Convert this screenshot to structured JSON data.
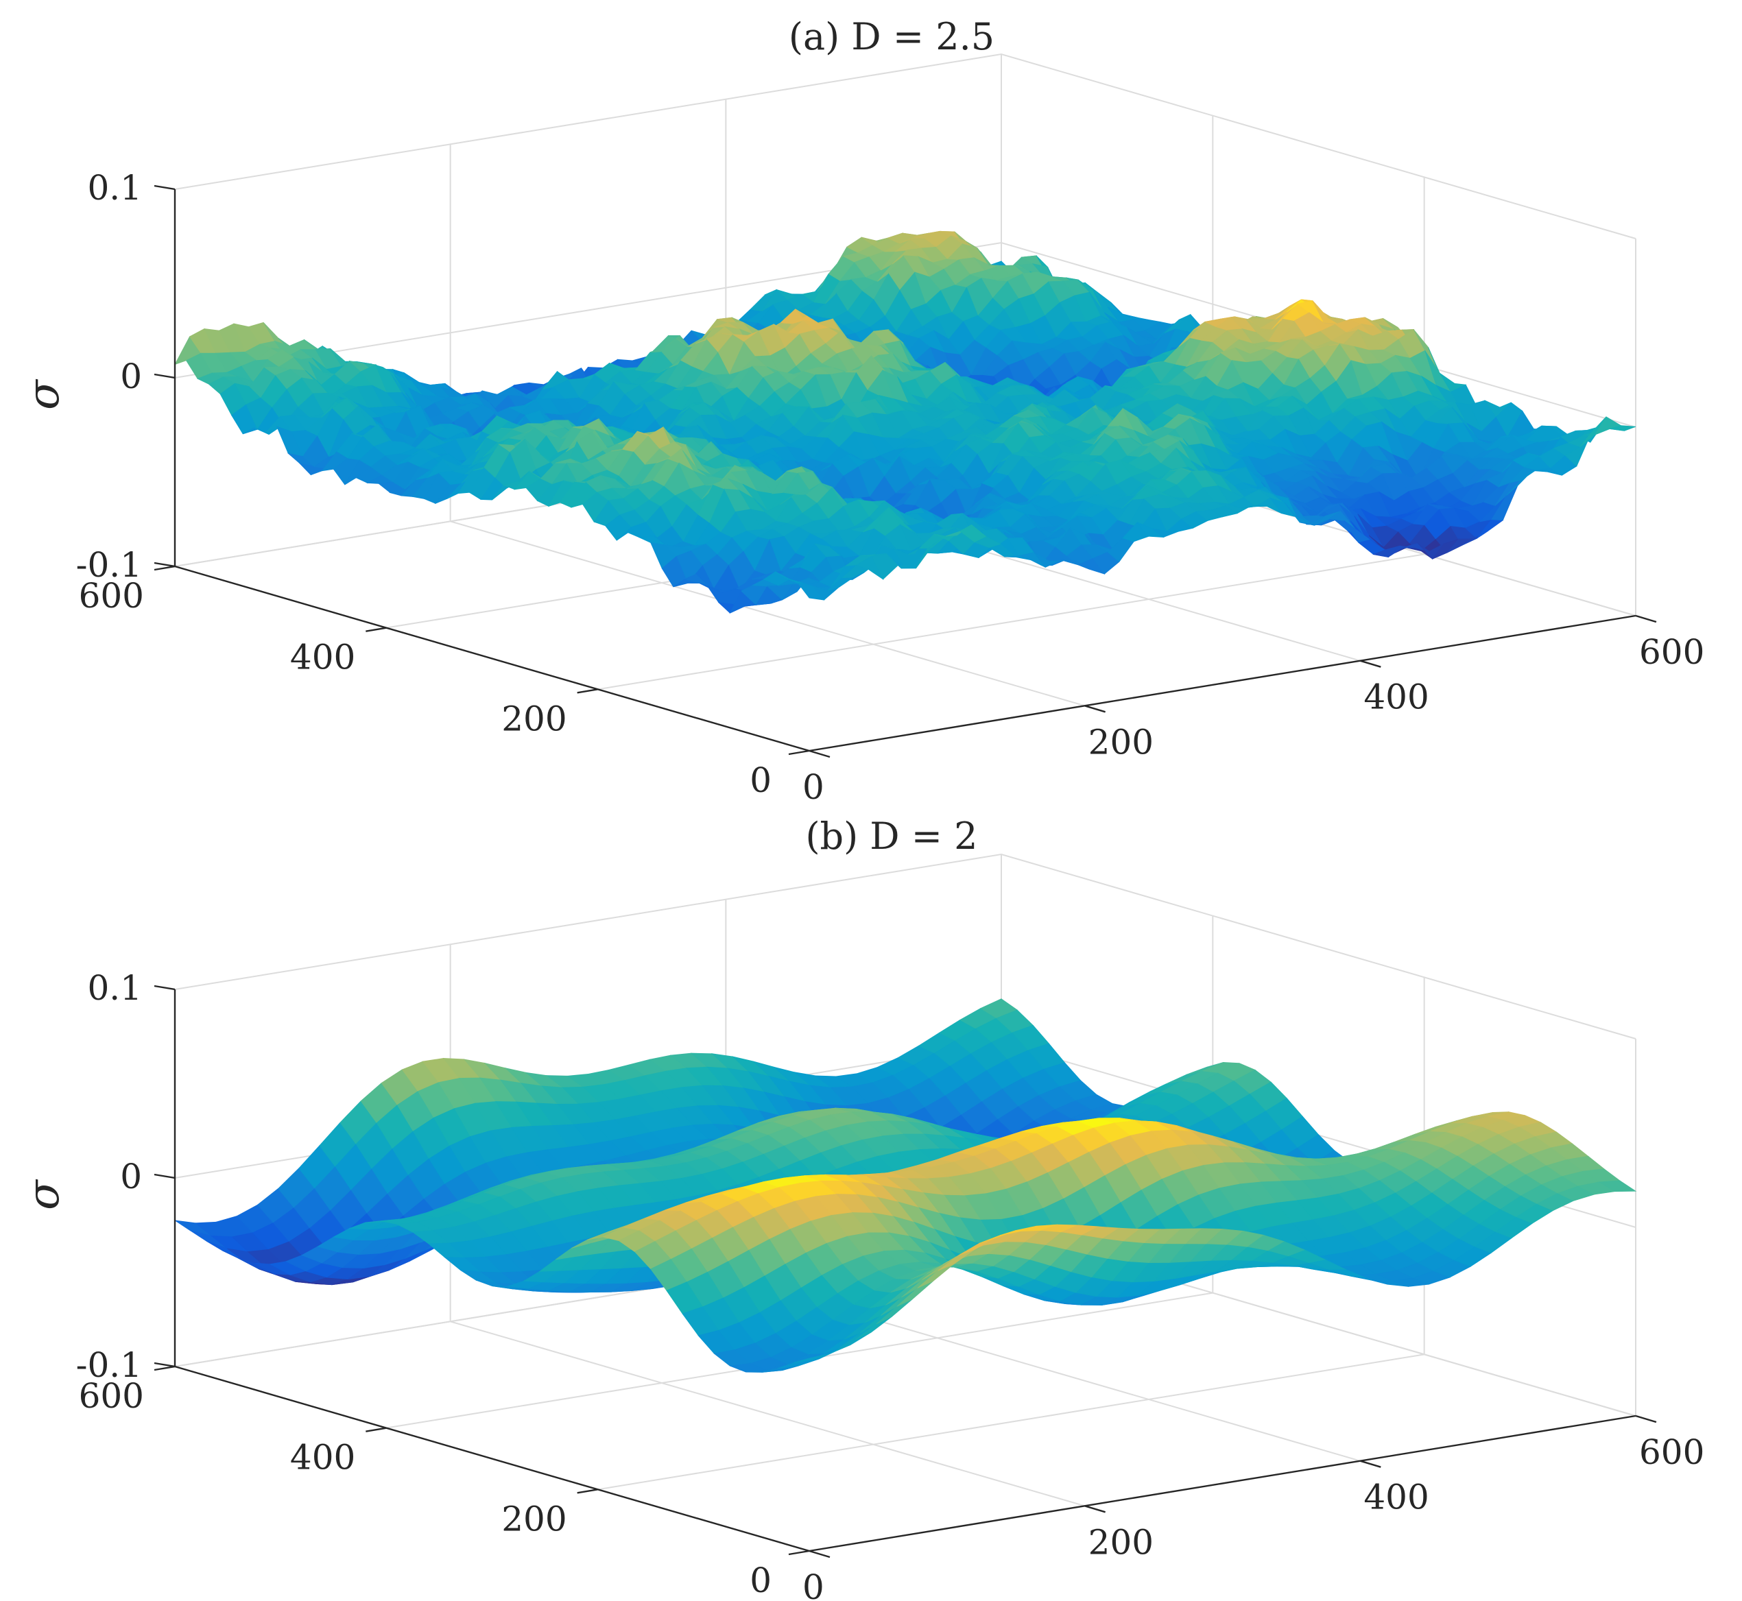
{
  "chart_data": [
    {
      "type": "surface",
      "title": "(a) D = 2.5",
      "zlabel": "σ",
      "xlim": [
        0,
        600
      ],
      "ylim": [
        0,
        600
      ],
      "zlim": [
        -0.1,
        0.1
      ],
      "xticks": [
        0,
        200,
        400,
        600
      ],
      "yticks": [
        0,
        200,
        400,
        600
      ],
      "zticks": [
        -0.1,
        0,
        0.1
      ],
      "xtick_labels": [
        "0",
        "200",
        "400",
        "600"
      ],
      "ytick_labels": [
        "0",
        "200",
        "400",
        "600"
      ],
      "ztick_labels": [
        "-0.1",
        "0",
        "0.1"
      ],
      "grid": true,
      "colormap": "parula",
      "roughness": "rough",
      "surface_z_range": [
        -0.055,
        0.035
      ]
    },
    {
      "type": "surface",
      "title": "(b) D = 2",
      "zlabel": "σ",
      "xlim": [
        0,
        600
      ],
      "ylim": [
        0,
        600
      ],
      "zlim": [
        -0.1,
        0.1
      ],
      "xticks": [
        0,
        200,
        400,
        600
      ],
      "yticks": [
        0,
        200,
        400,
        600
      ],
      "zticks": [
        -0.1,
        0,
        0.1
      ],
      "xtick_labels": [
        "0",
        "200",
        "400",
        "600"
      ],
      "ytick_labels": [
        "0",
        "200",
        "400",
        "600"
      ],
      "ztick_labels": [
        "-0.1",
        "0",
        "0.1"
      ],
      "grid": true,
      "colormap": "parula",
      "roughness": "smooth",
      "surface_z_range": [
        -0.05,
        0.055
      ]
    }
  ]
}
